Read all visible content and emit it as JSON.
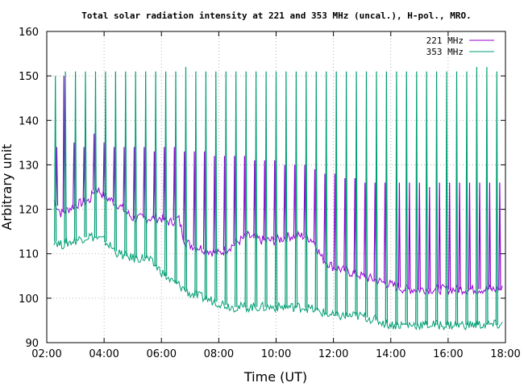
{
  "chart_data": {
    "type": "line",
    "title": "Total solar radiation intensity at 221 and 353 MHz (uncal.), H-pol., MRO.",
    "xlabel": "Time (UT)",
    "ylabel": "Arbitrary unit",
    "xlim": [
      "02:00",
      "18:00"
    ],
    "ylim": [
      90,
      160
    ],
    "x_ticks": [
      "02:00",
      "04:00",
      "06:00",
      "08:00",
      "10:00",
      "12:00",
      "14:00",
      "16:00",
      "18:00"
    ],
    "y_ticks": [
      "90",
      "100",
      "110",
      "120",
      "130",
      "140",
      "150",
      "160"
    ],
    "grid": true,
    "legend_position": "top-right",
    "x_units": "hours UT",
    "series": [
      {
        "name": "221 MHz",
        "color": "#9400d3",
        "baseline": {
          "x": [
            2.25,
            2.5,
            3.0,
            3.5,
            3.7,
            4.0,
            4.5,
            5.0,
            5.5,
            6.0,
            6.3,
            6.6,
            6.8,
            7.0,
            7.5,
            8.0,
            8.5,
            9.0,
            9.5,
            10.0,
            10.5,
            11.0,
            11.3,
            11.6,
            12.0,
            12.5,
            13.0,
            13.5,
            14.0,
            14.5,
            15.0,
            16.0,
            17.0,
            17.5,
            17.9
          ],
          "y": [
            122,
            119,
            121,
            122,
            125,
            123,
            121,
            118,
            118,
            118,
            117,
            118,
            113,
            112,
            111,
            110,
            112,
            114,
            113,
            113,
            114,
            114,
            113,
            109,
            107,
            106,
            105,
            104,
            103,
            102,
            102,
            102,
            102,
            102,
            102
          ]
        },
        "spike_peaks": {
          "x": [
            2.35,
            2.6,
            2.95,
            3.3,
            3.65,
            4.0,
            4.35,
            4.7,
            5.05,
            5.4,
            5.75,
            6.1,
            6.45,
            6.8,
            7.15,
            7.5,
            7.85,
            8.2,
            8.55,
            8.9,
            9.25,
            9.6,
            9.95,
            10.3,
            10.65,
            11.0,
            11.35,
            11.7,
            12.05,
            12.4,
            12.75,
            13.1,
            13.45,
            13.8,
            14.3,
            14.65,
            15.0,
            15.35,
            15.7,
            16.05,
            16.4,
            16.75,
            17.1,
            17.45,
            17.8
          ],
          "y": [
            134,
            150,
            135,
            134,
            137,
            135,
            134,
            134,
            134,
            134,
            133,
            134,
            134,
            133,
            133,
            133,
            132,
            132,
            132,
            132,
            131,
            131,
            131,
            130,
            130,
            130,
            129,
            128,
            128,
            127,
            127,
            126,
            126,
            126,
            126,
            126,
            126,
            125,
            126,
            126,
            126,
            126,
            126,
            126,
            126
          ]
        }
      },
      {
        "name": "353 MHz",
        "color": "#009e73",
        "baseline": {
          "x": [
            2.25,
            2.5,
            3.0,
            3.5,
            4.0,
            4.5,
            5.0,
            5.5,
            6.0,
            6.3,
            6.6,
            7.0,
            7.5,
            8.0,
            8.5,
            9.0,
            9.5,
            10.0,
            10.5,
            11.0,
            11.5,
            12.0,
            12.5,
            13.0,
            13.5,
            14.0,
            15.0,
            16.0,
            17.0,
            17.9
          ],
          "y": [
            113,
            112,
            113,
            114,
            113,
            110,
            109,
            109,
            106,
            104,
            103,
            101,
            100,
            99,
            98,
            98,
            98,
            98,
            98,
            98,
            97,
            96,
            96,
            96,
            95,
            94,
            94,
            94,
            94,
            94
          ]
        },
        "spike_peaks": {
          "x": [
            2.3,
            2.65,
            3.0,
            3.35,
            3.7,
            4.05,
            4.4,
            4.75,
            5.1,
            5.45,
            5.8,
            6.15,
            6.5,
            6.85,
            7.2,
            7.55,
            7.9,
            8.25,
            8.6,
            8.95,
            9.3,
            9.65,
            10.0,
            10.35,
            10.7,
            11.05,
            11.4,
            11.75,
            12.1,
            12.45,
            12.8,
            13.15,
            13.5,
            13.85,
            14.2,
            14.55,
            14.9,
            15.25,
            15.6,
            15.95,
            16.3,
            16.65,
            17.0,
            17.35,
            17.7
          ],
          "y": [
            150,
            151,
            151,
            151,
            151,
            151,
            151,
            151,
            151,
            151,
            151,
            151,
            151,
            152,
            151,
            151,
            151,
            151,
            151,
            151,
            151,
            151,
            151,
            151,
            151,
            151,
            151,
            151,
            151,
            151,
            151,
            151,
            151,
            151,
            151,
            151,
            151,
            151,
            151,
            151,
            151,
            151,
            152,
            152,
            151
          ]
        }
      }
    ]
  }
}
